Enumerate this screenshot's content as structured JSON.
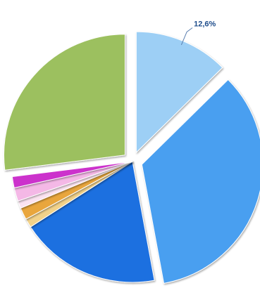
{
  "chart_data": {
    "type": "pie",
    "title": "",
    "start_angle_deg": 0,
    "direction": "clockwise",
    "slices": [
      {
        "value": 12.6,
        "label": "12,6%",
        "color": "#9dcff5",
        "exploded": true
      },
      {
        "value": 34.5,
        "label": "",
        "color": "#4a9ff0",
        "exploded": true
      },
      {
        "value": 18.8,
        "label": "",
        "color": "#1f6fe0",
        "exploded": false
      },
      {
        "value": 1.2,
        "label": "",
        "color": "#f2d28a",
        "exploded": false
      },
      {
        "value": 1.6,
        "label": "",
        "color": "#e9a63c",
        "exploded": false
      },
      {
        "value": 1.0,
        "label": "",
        "color": "#fbe3f1",
        "exploded": false
      },
      {
        "value": 1.8,
        "label": "",
        "color": "#f4b8e6",
        "exploded": false
      },
      {
        "value": 1.5,
        "label": "",
        "color": "#cc33cc",
        "exploded": false
      },
      {
        "value": 27.0,
        "label": "",
        "color": "#9cc05e",
        "exploded": true
      }
    ]
  }
}
